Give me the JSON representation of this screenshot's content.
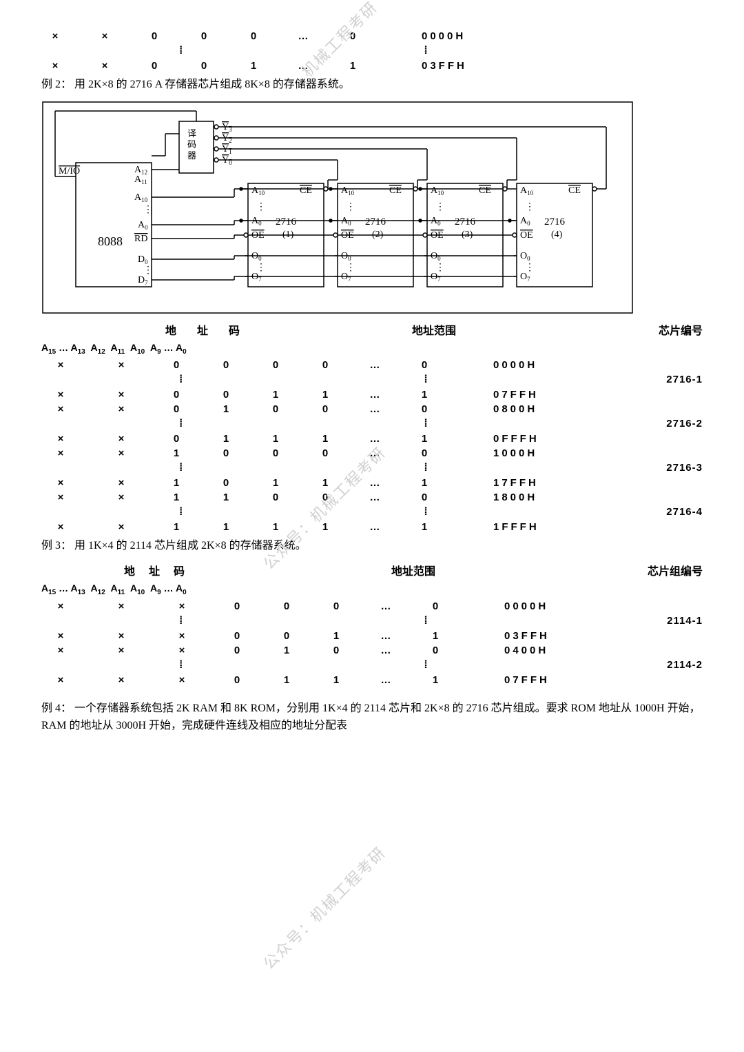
{
  "watermarks": [
    "机械工程考研",
    "公众号：机械工程考研",
    "公众号：机械工程考研"
  ],
  "top_rows": [
    {
      "bits": [
        "×",
        "×",
        "0",
        "0",
        "0",
        "…",
        "0"
      ],
      "range": "0000H"
    },
    {
      "vdots": true
    },
    {
      "bits": [
        "×",
        "×",
        "0",
        "0",
        "1",
        "…",
        "1"
      ],
      "range": "03FFH"
    }
  ],
  "example2_text": "例 2：  用 2K×8 的 2716 A 存储器芯片组成 8K×8 的存储器系统。",
  "diagram": {
    "cpu_label": "8088",
    "decoder_label": "译\n码\n器",
    "cpu_pins_left": [
      "M/IO"
    ],
    "cpu_pins_right": [
      "A₁₂",
      "A₁₁",
      "A₁₀",
      "A₀",
      "RD",
      "D₀",
      "D₇"
    ],
    "decoder_outputs": [
      "Y₃",
      "Y₂",
      "Y₁",
      "Y₀"
    ],
    "chip_labels": [
      "2716\n(1)",
      "2716\n(2)",
      "2716\n(3)",
      "2716\n(4)"
    ],
    "chip_pins": [
      "A₁₀",
      "CE",
      "A₀",
      "OE",
      "O₀",
      "O₇"
    ]
  },
  "table2_header": {
    "h1": "地址码",
    "h2": "地址范围",
    "h3": "芯片编号"
  },
  "table2_subheader": "A₁₅ … A₁₃  A₁₂  A₁₁  A₁₀  A₉ … A₀",
  "table2_rows": [
    {
      "bits": [
        "×",
        "×",
        "0",
        "0",
        "0",
        "0",
        "…",
        "0"
      ],
      "range": "0000H",
      "chip": ""
    },
    {
      "vdots": true,
      "chip": "2716-1"
    },
    {
      "bits": [
        "×",
        "×",
        "0",
        "0",
        "1",
        "1",
        "…",
        "1"
      ],
      "range": "07FFH",
      "chip": ""
    },
    {
      "bits": [
        "×",
        "×",
        "0",
        "1",
        "0",
        "0",
        "…",
        "0"
      ],
      "range": "0800H",
      "chip": ""
    },
    {
      "vdots": true,
      "chip": "2716-2"
    },
    {
      "bits": [
        "×",
        "×",
        "0",
        "1",
        "1",
        "1",
        "…",
        "1"
      ],
      "range": "0FFFH",
      "chip": ""
    },
    {
      "bits": [
        "×",
        "×",
        "1",
        "0",
        "0",
        "0",
        "…",
        "0"
      ],
      "range": "1000H",
      "chip": ""
    },
    {
      "vdots": true,
      "chip": "2716-3"
    },
    {
      "bits": [
        "×",
        "×",
        "1",
        "0",
        "1",
        "1",
        "…",
        "1"
      ],
      "range": "17FFH",
      "chip": ""
    },
    {
      "bits": [
        "×",
        "×",
        "1",
        "1",
        "0",
        "0",
        "…",
        "0"
      ],
      "range": "1800H",
      "chip": ""
    },
    {
      "vdots": true,
      "chip": "2716-4"
    },
    {
      "bits": [
        "×",
        "×",
        "1",
        "1",
        "1",
        "1",
        "…",
        "1"
      ],
      "range": "1FFFH",
      "chip": ""
    }
  ],
  "example3_text": "例 3：  用 1K×4 的 2114 芯片组成 2K×8 的存储器系统。",
  "table3_header": {
    "h1": "地址码",
    "h2": "地址范围",
    "h3": "芯片组编号"
  },
  "table3_subheader": "A₁₅ … A₁₃  A₁₂  A₁₁  A₁₀  A₉ … A₀",
  "table3_rows": [
    {
      "bits": [
        "×",
        "×",
        "×",
        "0",
        "0",
        "0",
        "…",
        "0"
      ],
      "range": "0000H",
      "chip": ""
    },
    {
      "vdots": true,
      "chip": "2114-1"
    },
    {
      "bits": [
        "×",
        "×",
        "×",
        "0",
        "0",
        "1",
        "…",
        "1"
      ],
      "range": "03FFH",
      "chip": ""
    },
    {
      "bits": [
        "×",
        "×",
        "×",
        "0",
        "1",
        "0",
        "…",
        "0"
      ],
      "range": "0400H",
      "chip": ""
    },
    {
      "vdots": true,
      "chip": "2114-2"
    },
    {
      "bits": [
        "×",
        "×",
        "×",
        "0",
        "1",
        "1",
        "…",
        "1"
      ],
      "range": "07FFH",
      "chip": ""
    }
  ],
  "example4_text": "例 4：  一个存储器系统包括 2K RAM 和 8K ROM，分别用 1K×4 的 2114 芯片和 2K×8 的 2716 芯片组成。要求 ROM 地址从 1000H 开始，RAM 的地址从 3000H 开始，完成硬件连线及相应的地址分配表"
}
